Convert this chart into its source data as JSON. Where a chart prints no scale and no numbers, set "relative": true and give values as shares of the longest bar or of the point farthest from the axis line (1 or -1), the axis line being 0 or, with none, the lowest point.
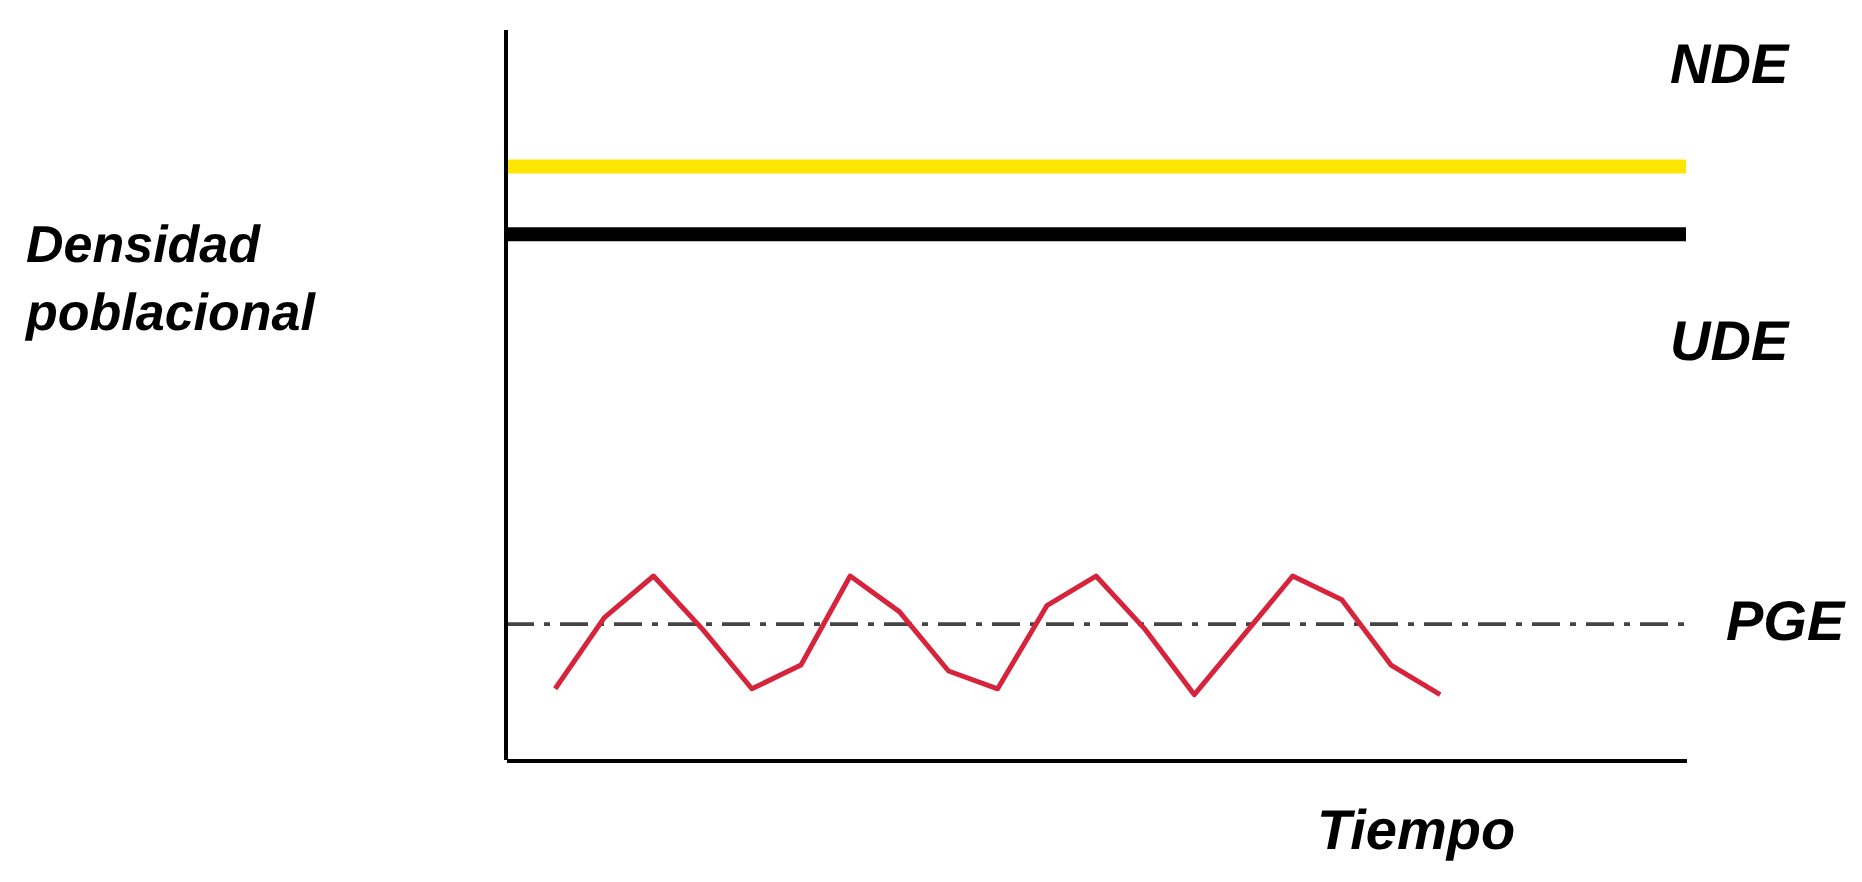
{
  "chart_data": {
    "type": "line",
    "relative": true,
    "xlabel": "Tiempo",
    "annotations": [
      "Densidad poblacional"
    ],
    "categories": [
      null,
      null,
      null,
      null,
      null,
      null,
      null,
      null,
      null,
      null,
      null,
      null,
      null,
      null,
      null,
      null,
      null,
      null,
      null,
      null,
      null,
      null,
      null,
      null,
      null
    ],
    "series": [
      {
        "name": "NDE",
        "color": "#ffe600",
        "values": [
          1,
          1,
          1,
          1,
          1,
          1,
          1,
          1,
          1,
          1,
          1,
          1,
          1,
          1,
          1,
          1,
          1,
          1,
          1,
          1,
          1,
          1,
          1,
          1,
          1
        ]
      },
      {
        "name": "UDE",
        "color": "#000000",
        "values": [
          0.886,
          0.886,
          0.886,
          0.886,
          0.886,
          0.886,
          0.886,
          0.886,
          0.886,
          0.886,
          0.886,
          0.886,
          0.886,
          0.886,
          0.886,
          0.886,
          0.886,
          0.886,
          0.886,
          0.886,
          0.886,
          0.886,
          0.886,
          0.886,
          0.886
        ]
      },
      {
        "name": "PGE",
        "color": "#444444",
        "line_style": "dashed",
        "values": [
          0.229,
          0.229,
          0.229,
          0.229,
          0.229,
          0.229,
          0.229,
          0.229,
          0.229,
          0.229,
          0.229,
          0.229,
          0.229,
          0.229,
          0.229,
          0.229,
          0.229,
          0.229,
          0.229,
          0.229,
          0.229,
          0.229,
          0.229,
          0.229,
          0.229
        ]
      },
      {
        "color": "#d6243c",
        "values": [
          null,
          0.12,
          0.24,
          0.31,
          0.22,
          0.12,
          0.16,
          0.31,
          0.25,
          0.15,
          0.12,
          0.26,
          0.31,
          0.22,
          0.11,
          0.21,
          0.31,
          0.27,
          0.16,
          0.11,
          null,
          null,
          null,
          null,
          null
        ]
      }
    ],
    "grid": false,
    "legend": false
  }
}
